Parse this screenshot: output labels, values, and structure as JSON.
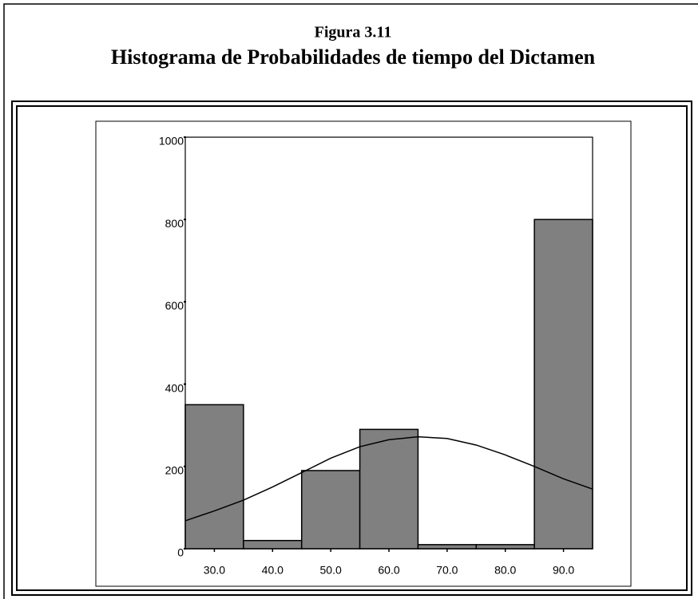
{
  "figure_label": "Figura 3.11",
  "chart_data": {
    "type": "histogram",
    "title": "Histograma de Probabilidades de tiempo del Dictamen",
    "bins": [
      25,
      35,
      45,
      55,
      65,
      75,
      85,
      95
    ],
    "values": [
      350,
      20,
      190,
      290,
      10,
      10,
      800
    ],
    "color": "#808080",
    "xlim": [
      25,
      95
    ],
    "xticks": [
      {
        "value": 30,
        "label": "30.0"
      },
      {
        "value": 40,
        "label": "40.0"
      },
      {
        "value": 50,
        "label": "50.0"
      },
      {
        "value": 60,
        "label": "60.0"
      },
      {
        "value": 70,
        "label": "70.0"
      },
      {
        "value": 80,
        "label": "80.0"
      },
      {
        "value": 90,
        "label": "90.0"
      }
    ],
    "ylim": [
      0,
      1000
    ],
    "yticks": [
      0,
      200,
      400,
      600,
      800,
      1000
    ],
    "curve": {
      "x": [
        25,
        30,
        35,
        40,
        45,
        50,
        55,
        60,
        65,
        70,
        75,
        80,
        85,
        90,
        95
      ],
      "values": [
        68,
        92,
        118,
        150,
        185,
        220,
        248,
        265,
        272,
        268,
        252,
        228,
        200,
        170,
        145
      ],
      "color": "#000000"
    }
  }
}
